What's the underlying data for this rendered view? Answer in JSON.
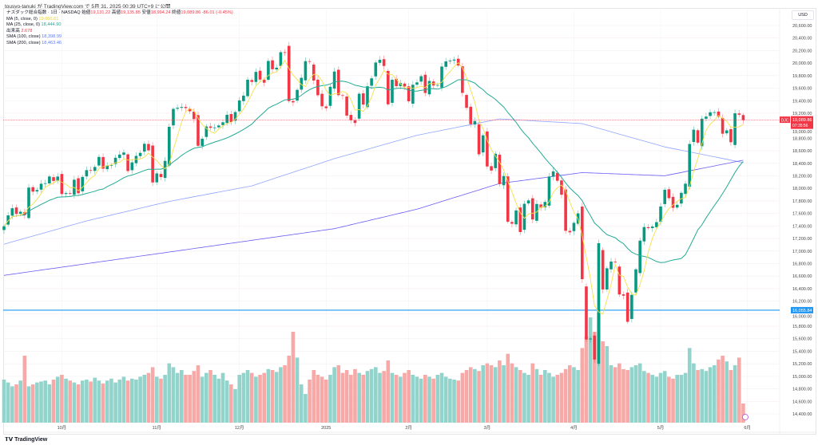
{
  "header": {
    "published": "tousyo-tanuki が TradingView.com で 5月 31, 2025 00:39 UTC+9 に公開"
  },
  "legend": {
    "symbol": "ナスダック総合指数 · 1日 · NASDAQ",
    "open_label": "始値",
    "open": "19,131.22",
    "high_label": "高値",
    "high": "19,135.85",
    "low_label": "安値",
    "low": "18,994.24",
    "close_label": "終値",
    "close": "19,089.86",
    "change": "-86.01 (-0.45%)",
    "indicators": [
      {
        "label": "MA (5, close, 0)",
        "value": "19,060.61",
        "color": "#f0d93a"
      },
      {
        "label": "MA (25, close, 0)",
        "value": "18,444.90",
        "color": "#22ab94"
      },
      {
        "label": "出来高",
        "value": "2.678",
        "color": "#f23645"
      },
      {
        "label": "SMA (100, close)",
        "value": "18,398.99",
        "color": "#5b7cff"
      },
      {
        "label": "SMA (200, close)",
        "value": "18,463.46",
        "color": "#5b7cff"
      }
    ]
  },
  "price_axis": {
    "currency": "USD",
    "labels": [
      "20,600.00",
      "20,400.00",
      "20,200.00",
      "20,000.00",
      "19,800.00",
      "19,600.00",
      "19,400.00",
      "19,200.00",
      "19,000.00",
      "18,800.00",
      "18,600.00",
      "18,400.00",
      "18,200.00",
      "18,000.00",
      "17,800.00",
      "17,600.00",
      "17,400.00",
      "17,200.00",
      "17,000.00",
      "16,800.00",
      "16,600.00",
      "16,400.00",
      "16,200.00",
      "16,000.00",
      "15,800.00",
      "15,600.00",
      "15,400.00",
      "15,200.00",
      "15,000.00",
      "14,800.00",
      "14,600.00",
      "14,400.00"
    ],
    "last_price_tag": "19,089.86",
    "countdown": "07:35:56",
    "symbol_tag": "DJC",
    "hline_price": 16055.84,
    "hline_tag": "16,055.84"
  },
  "time_axis": {
    "labels": [
      {
        "text": "10月",
        "bar": 14
      },
      {
        "text": "11月",
        "bar": 37
      },
      {
        "text": "12月",
        "bar": 57
      },
      {
        "text": "2025",
        "bar": 78
      },
      {
        "text": "2月",
        "bar": 98
      },
      {
        "text": "3月",
        "bar": 117
      },
      {
        "text": "4月",
        "bar": 138
      },
      {
        "text": "5月",
        "bar": 159
      },
      {
        "text": "6月",
        "bar": 180
      }
    ]
  },
  "colors": {
    "up": "#089981",
    "down": "#f23645",
    "vol_up": "#92d3cb",
    "vol_down": "#f7a9a7",
    "ma5": "#f5e04a",
    "ma25": "#22ab94",
    "sma100": "#8fa5ff",
    "sma200": "#6a5cf5",
    "hline": "#2196f3"
  },
  "chart_data": {
    "type": "candlestick",
    "title": "ナスダック総合指数 · 1日 · NASDAQ",
    "ylim": [
      14400,
      20600
    ],
    "closes": [
      17396,
      17569,
      17683,
      17592,
      17628,
      17573,
      18013,
      17948,
      17974,
      18074,
      18082,
      18190,
      18119,
      18189,
      17910,
      17925,
      17918,
      18138,
      17923,
      18183,
      18291,
      18282,
      18342,
      18502,
      18315,
      18367,
      18373,
      18489,
      18540,
      18573,
      18277,
      18415,
      18519,
      18567,
      18712,
      18607,
      18095,
      18239,
      18180,
      18439,
      18983,
      19269,
      19287,
      19299,
      19282,
      19231,
      19107,
      18680,
      18792,
      18988,
      18967,
      18973,
      19004,
      19055,
      19175,
      19060,
      19218,
      19404,
      19481,
      19735,
      19700,
      19860,
      19737,
      19687,
      20034,
      19902,
      19927,
      20174,
      20173,
      19393,
      19373,
      19573,
      19765,
      20031,
      20020,
      19722,
      19487,
      19311,
      19281,
      19622,
      19865,
      19489,
      19479,
      19162,
      19088,
      19044,
      19511,
      19338,
      19630,
      19757,
      20009,
      20053,
      19954,
      19342,
      19734,
      19632,
      19681,
      19627,
      19391,
      19654,
      19692,
      19791,
      19523,
      19715,
      19643,
      19650,
      19945,
      20027,
      20041,
      20056,
      19962,
      19525,
      19286,
      19026,
      19075,
      18544,
      18847,
      18350,
      18285,
      18553,
      18069,
      18197,
      17468,
      17436,
      17648,
      17303,
      17754,
      17808,
      17504,
      17751,
      17691,
      17784,
      18189,
      18271,
      18122,
      17899,
      17323,
      17299,
      17450,
      17601,
      16551,
      15588,
      15603,
      15268,
      17125,
      16387,
      16724,
      16832,
      16823,
      16307,
      16287,
      15870,
      16301,
      16708,
      17166,
      17383,
      17366,
      17391,
      17461,
      17711,
      17978,
      17844,
      17690,
      17738,
      17929,
      18075,
      18709,
      18937,
      18730,
      19112,
      19146,
      19215,
      19216,
      19143,
      18873,
      18926,
      18737,
      19199,
      19176,
      19090
    ],
    "volumes": [
      45,
      42,
      38,
      40,
      44,
      70,
      38,
      40,
      42,
      43,
      44,
      40,
      45,
      48,
      50,
      46,
      44,
      42,
      40,
      44,
      45,
      43,
      47,
      44,
      41,
      44,
      46,
      42,
      45,
      48,
      44,
      46,
      45,
      48,
      50,
      52,
      58,
      48,
      46,
      50,
      62,
      58,
      52,
      55,
      50,
      50,
      54,
      60,
      48,
      52,
      55,
      50,
      46,
      52,
      44,
      40,
      35,
      50,
      52,
      55,
      52,
      48,
      50,
      52,
      56,
      55,
      53,
      58,
      60,
      70,
      95,
      68,
      40,
      30,
      45,
      55,
      50,
      48,
      45,
      50,
      58,
      60,
      52,
      55,
      50,
      56,
      52,
      50,
      54,
      56,
      58,
      52,
      54,
      65,
      52,
      50,
      48,
      52,
      55,
      50,
      48,
      46,
      50,
      48,
      46,
      50,
      52,
      48,
      46,
      45,
      44,
      52,
      55,
      58,
      56,
      54,
      60,
      62,
      60,
      58,
      65,
      60,
      72,
      62,
      58,
      55,
      52,
      50,
      62,
      56,
      50,
      55,
      52,
      48,
      50,
      52,
      56,
      60,
      58,
      55,
      78,
      90,
      110,
      95,
      115,
      85,
      80,
      60,
      58,
      62,
      56,
      55,
      58,
      60,
      62,
      54,
      52,
      50,
      48,
      52,
      54,
      48,
      46,
      50,
      50,
      52,
      78,
      62,
      55,
      56,
      54,
      58,
      60,
      66,
      70,
      64,
      55,
      60,
      68,
      20
    ],
    "sma100_every20": [
      17109,
      17481,
      17792,
      18040,
      18475,
      18848,
      19109,
      19034,
      18662,
      18399
    ],
    "sma200_every20": [
      16612,
      16798,
      16984,
      17171,
      17357,
      17668,
      18078,
      18252,
      18202,
      18463
    ]
  }
}
